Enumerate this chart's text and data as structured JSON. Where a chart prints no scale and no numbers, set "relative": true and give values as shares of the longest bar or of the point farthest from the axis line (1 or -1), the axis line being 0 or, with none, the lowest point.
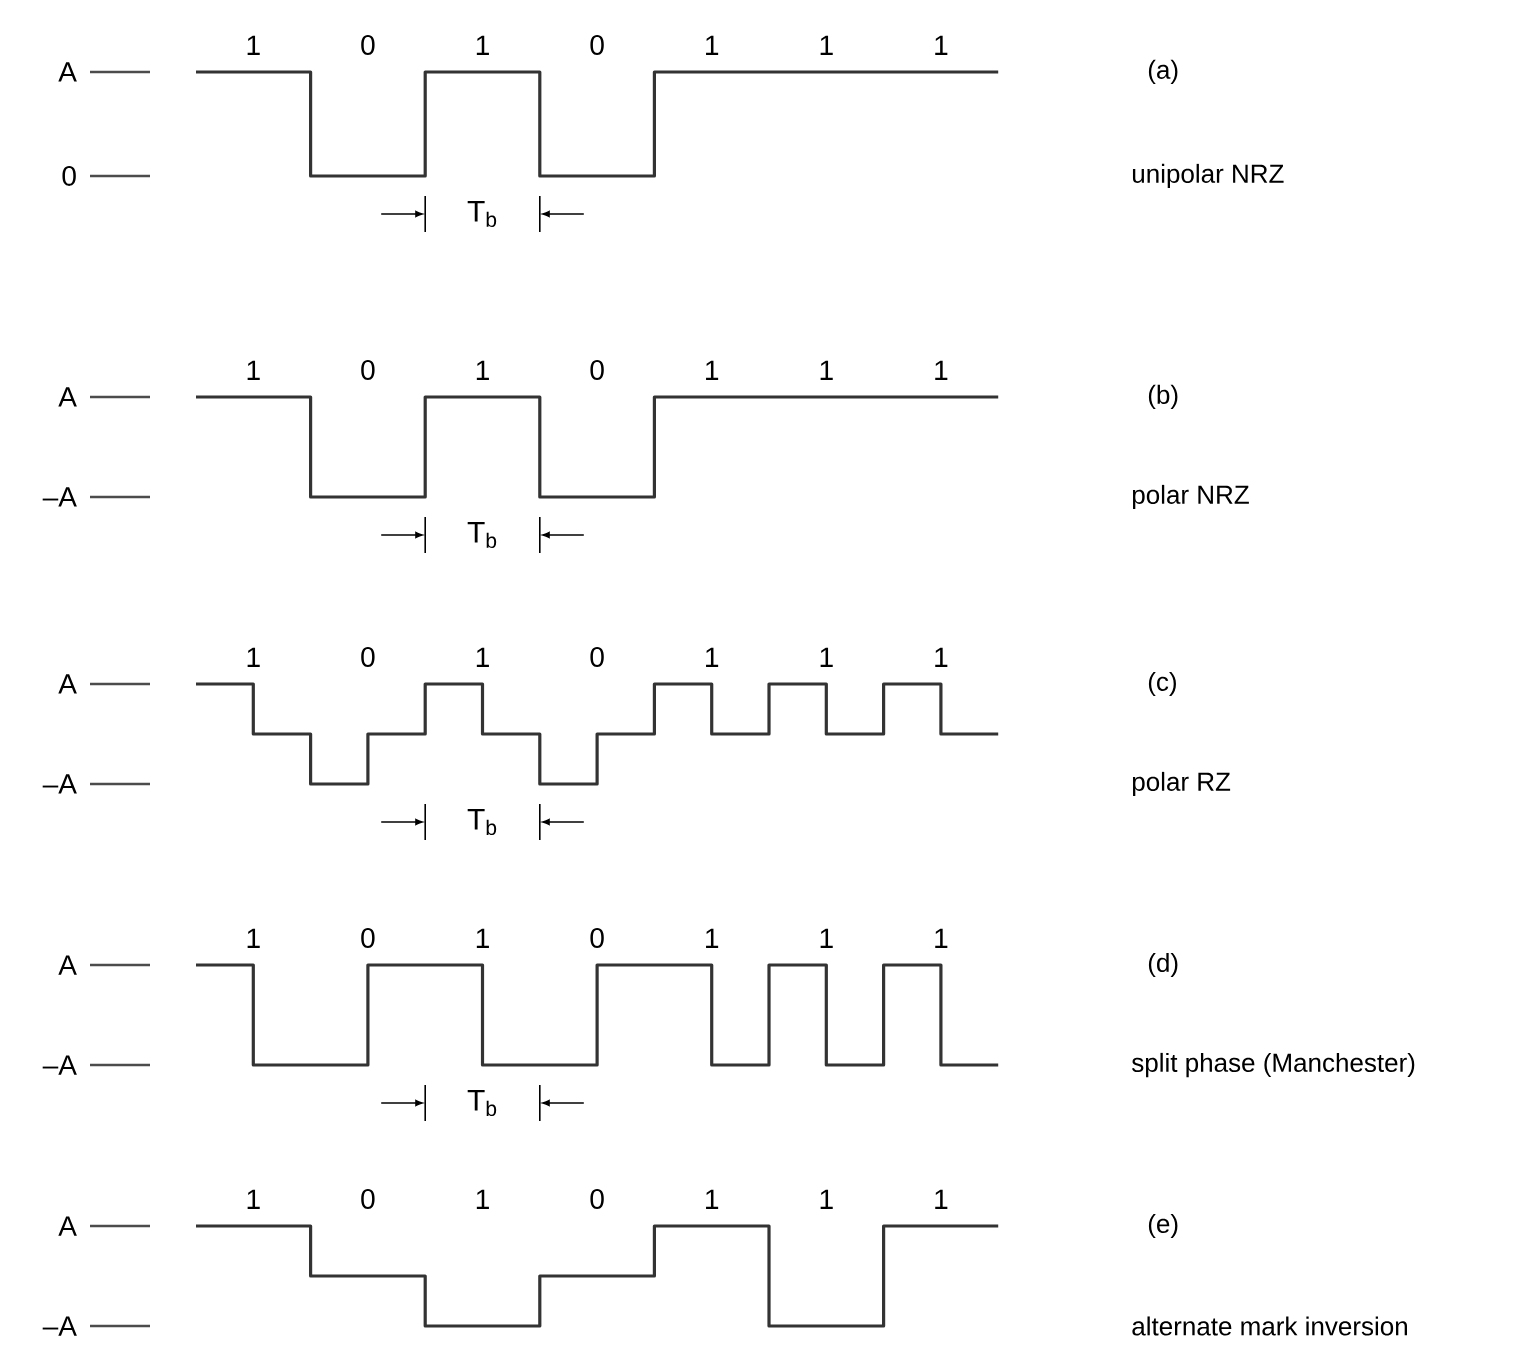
{
  "chart_data": [
    {
      "type": "step",
      "relative": true,
      "color": "#333333",
      "line_style": "solid",
      "categories": [
        null,
        "1",
        null,
        "0",
        null,
        "1",
        null,
        "0",
        null,
        "1",
        null,
        "1",
        null,
        "1",
        null
      ],
      "values": [
        1,
        1,
        0,
        0,
        1,
        1,
        0,
        0,
        1,
        1,
        1,
        1,
        1,
        1,
        1
      ],
      "annotations": [
        "A",
        "0",
        "(a)",
        "unipolar NRZ",
        "T$_{b}$"
      ]
    },
    {
      "type": "step",
      "relative": true,
      "color": "#333333",
      "line_style": "solid",
      "categories": [
        null,
        "1",
        null,
        "0",
        null,
        "1",
        null,
        "0",
        null,
        "1",
        null,
        "1",
        null,
        "1",
        null
      ],
      "values": [
        1,
        1,
        0,
        0,
        1,
        1,
        0,
        0,
        1,
        1,
        1,
        1,
        1,
        1,
        1
      ],
      "annotations": [
        "A",
        "–A",
        "(b)",
        "polar NRZ",
        "T$_{b}$"
      ]
    },
    {
      "type": "step",
      "relative": true,
      "color": "#333333",
      "line_style": "solid",
      "categories": [
        null,
        "1",
        null,
        "0",
        null,
        "1",
        null,
        "0",
        null,
        "1",
        null,
        "1",
        null,
        "1",
        null
      ],
      "values": [
        1,
        0.5,
        0,
        0.5,
        1,
        0.5,
        0,
        0.5,
        1,
        0.5,
        1,
        0.5,
        1,
        0.5,
        0.5
      ],
      "annotations": [
        "A",
        "–A",
        "(c)",
        "polar RZ",
        "T$_{b}$"
      ]
    },
    {
      "type": "step",
      "relative": true,
      "color": "#333333",
      "line_style": "solid",
      "categories": [
        null,
        "1",
        null,
        "0",
        null,
        "1",
        null,
        "0",
        null,
        "1",
        null,
        "1",
        null,
        "1",
        null
      ],
      "values": [
        1,
        0,
        0,
        1,
        1,
        0,
        0,
        1,
        1,
        0,
        1,
        0,
        1,
        0,
        0
      ],
      "annotations": [
        "A",
        "–A",
        "(d)",
        "split phase (Manchester)",
        "T$_{b}$"
      ]
    },
    {
      "type": "step",
      "relative": true,
      "color": "#333333",
      "line_style": "solid",
      "categories": [
        null,
        "1",
        null,
        "0",
        null,
        "1",
        null,
        "0",
        null,
        "1",
        null,
        "1",
        null,
        "1",
        null
      ],
      "values": [
        1,
        1,
        0.5,
        0.5,
        0,
        0,
        0.5,
        0.5,
        1,
        1,
        0,
        0,
        1,
        1,
        1
      ],
      "annotations": [
        "A",
        "–A",
        "(e)",
        "alternate mark inversion"
      ]
    }
  ]
}
